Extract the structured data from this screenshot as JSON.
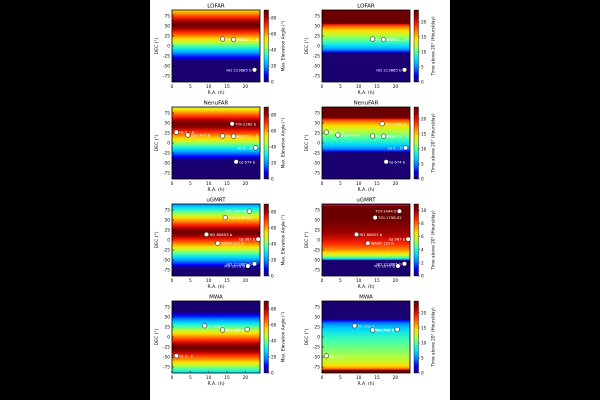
{
  "figure": {
    "x_axis_label": "R.A. (h)",
    "y_axis_label": "DEC (°)",
    "left_colorbar_label": "Max. Elevation Angle (°)",
    "right_colorbar_label": "Time above 20° (Hours/day)"
  },
  "colormap": [
    "#1a0070",
    "#0000ff",
    "#0080ff",
    "#00d8ff",
    "#40ffb0",
    "#b0ff40",
    "#ffe000",
    "#ff8000",
    "#ff2000",
    "#a00000",
    "#6a0000"
  ],
  "chart_data": [
    {
      "telescope": "LOFAR",
      "title": "LOFAR",
      "type": "heatmap",
      "x_ticks": [
        0,
        5,
        10,
        15,
        20
      ],
      "y_ticks": [
        75,
        50,
        25,
        0,
        -25,
        -50,
        -75
      ],
      "xlim": [
        0,
        24
      ],
      "ylim": [
        -90,
        90
      ],
      "elevation": {
        "lat": 53,
        "cbar_ticks": [
          0,
          20,
          40,
          60,
          80
        ],
        "vmax": 90
      },
      "hours": {
        "cbar_ticks": [
          0,
          5,
          10,
          15,
          20
        ],
        "vmax": 24
      },
      "targets": [
        {
          "name": "Tau Boo b",
          "ra": 13.8,
          "dec": 17.5
        },
        {
          "name": "HD 221... b",
          "ra": 16.8,
          "dec": 16
        },
        {
          "name": "HD 213885 b",
          "ra": 22.5,
          "dec": -59.5
        }
      ]
    },
    {
      "telescope": "NenuFAR",
      "title": "NenuFAR",
      "type": "heatmap",
      "x_ticks": [
        0,
        5,
        10,
        15,
        20
      ],
      "y_ticks": [
        75,
        50,
        25,
        0,
        -25,
        -50,
        -75
      ],
      "xlim": [
        0,
        24
      ],
      "ylim": [
        -90,
        90
      ],
      "elevation": {
        "lat": 47,
        "cbar_ticks": [
          0,
          20,
          40,
          60,
          80
        ],
        "vmax": 90
      },
      "hours": {
        "cbar_ticks": [
          0,
          5,
          10,
          15,
          20
        ],
        "vmax": 24
      },
      "targets": [
        {
          "name": "GJ 3... b",
          "ra": 1.2,
          "dec": 27
        },
        {
          "name": "Ups And b",
          "ra": 4.3,
          "dec": 20
        },
        {
          "name": "TOI-2260 b",
          "ra": 16.4,
          "dec": 48
        },
        {
          "name": "Tau Boo b",
          "ra": 13.8,
          "dec": 17.5
        },
        {
          "name": "HD 213... b",
          "ra": 16.8,
          "dec": 17
        },
        {
          "name": "GJ 3... b",
          "ra": 22.8,
          "dec": -12
        },
        {
          "name": "GJ 674 b",
          "ra": 17.5,
          "dec": -46.9
        }
      ]
    },
    {
      "telescope": "uGMRT",
      "title": "uGMRT",
      "type": "heatmap",
      "x_ticks": [
        0,
        5,
        10,
        15,
        20
      ],
      "y_ticks": [
        75,
        50,
        25,
        0,
        -25,
        -50,
        -75
      ],
      "xlim": [
        0,
        24
      ],
      "ylim": [
        -90,
        90
      ],
      "elevation": {
        "lat": 19,
        "cbar_ticks": [
          0,
          20,
          40,
          60,
          80
        ],
        "vmax": 90
      },
      "hours": {
        "cbar_ticks": [
          0,
          2,
          4,
          6,
          8,
          10
        ],
        "vmax": 11
      },
      "targets": [
        {
          "name": "TOI-1444 b",
          "ra": 21.1,
          "dec": 72
        },
        {
          "name": "TOI-1798.02",
          "ra": 14.5,
          "dec": 56
        },
        {
          "name": "HD 80653 b",
          "ra": 9.4,
          "dec": 14
        },
        {
          "name": "GJ 367 b",
          "ra": 23.5,
          "dec": 2
        },
        {
          "name": "WASP-121 b",
          "ra": 12.5,
          "dec": -8
        },
        {
          "name": "HD 213885 b",
          "ra": 22.5,
          "dec": -59.5
        },
        {
          "name": "TOI-1075 b",
          "ra": 20.7,
          "dec": -65
        }
      ]
    },
    {
      "telescope": "MWA",
      "title": "MWA",
      "type": "heatmap",
      "x_ticks": [
        0,
        5,
        10,
        15,
        20
      ],
      "y_ticks": [
        75,
        50,
        25,
        0,
        -25,
        -50,
        -75
      ],
      "xlim": [
        0,
        24
      ],
      "ylim": [
        -90,
        90
      ],
      "elevation": {
        "lat": -27,
        "cbar_ticks": [
          0,
          20,
          40,
          60,
          80
        ],
        "vmax": 90
      },
      "hours": {
        "cbar_ticks": [
          0,
          5,
          10,
          15,
          20
        ],
        "vmax": 24
      },
      "targets": [
        {
          "name": "55 Cnc e",
          "ra": 8.9,
          "dec": 28
        },
        {
          "name": "Tau Boo b",
          "ra": 13.8,
          "dec": 17.5
        },
        {
          "name": "Ups And b",
          "ra": 20.5,
          "dec": 19
        },
        {
          "name": "GJ 3.. b",
          "ra": 1.2,
          "dec": -47
        }
      ]
    }
  ]
}
